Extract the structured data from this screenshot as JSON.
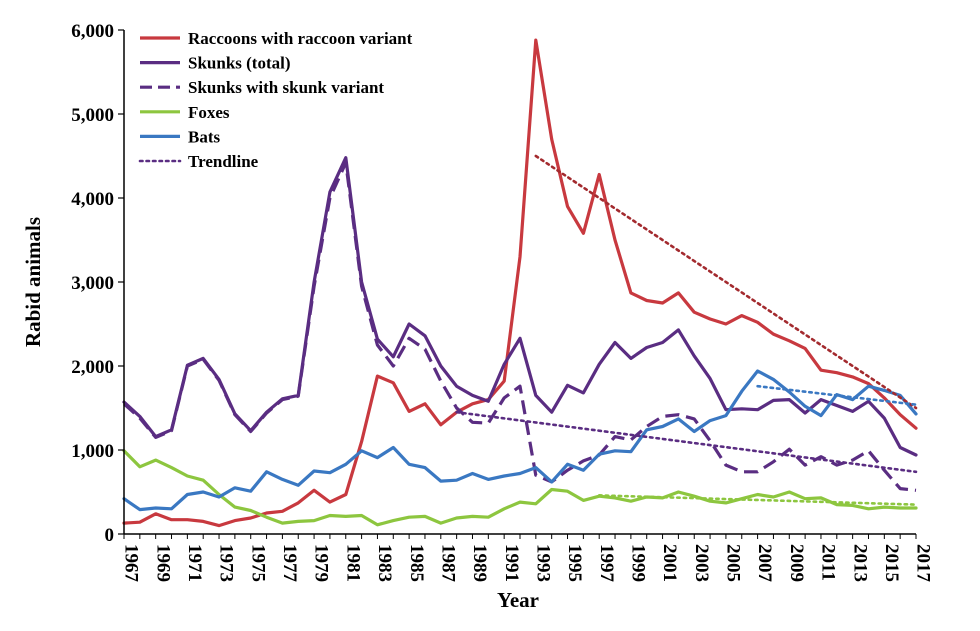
{
  "chart_data": {
    "type": "line",
    "xlabel": "Year",
    "ylabel": "Rabid animals",
    "xlim": [
      1967,
      2017
    ],
    "ylim": [
      0,
      6000
    ],
    "yticks": [
      0,
      1000,
      2000,
      3000,
      4000,
      5000,
      6000
    ],
    "ytick_labels": [
      "0",
      "1,000",
      "2,000",
      "3,000",
      "4,000",
      "5,000",
      "6,000"
    ],
    "xticks": [
      1967,
      1969,
      1971,
      1973,
      1975,
      1977,
      1979,
      1981,
      1983,
      1985,
      1987,
      1989,
      1991,
      1993,
      1995,
      1997,
      1999,
      2001,
      2003,
      2005,
      2007,
      2009,
      2011,
      2013,
      2015,
      2017
    ],
    "xtick_labels": [
      "1967",
      "1969",
      "1971",
      "1973",
      "1975",
      "1977",
      "1979",
      "1981",
      "1983",
      "1985",
      "1987",
      "1989",
      "1991",
      "1993",
      "1995",
      "1997",
      "1999",
      "2001",
      "2003",
      "2005",
      "2007",
      "2009",
      "2011",
      "2013",
      "2015",
      "2017"
    ],
    "grid": false,
    "legend_position": "top-left",
    "series": [
      {
        "name": "Raccoons with raccoon variant",
        "color": "#c8393f",
        "dash": "solid",
        "x": [
          1967,
          1968,
          1969,
          1970,
          1971,
          1972,
          1973,
          1974,
          1975,
          1976,
          1977,
          1978,
          1979,
          1980,
          1981,
          1982,
          1983,
          1984,
          1985,
          1986,
          1987,
          1988,
          1989,
          1990,
          1991,
          1992,
          1993,
          1994,
          1995,
          1996,
          1997,
          1998,
          1999,
          2000,
          2001,
          2002,
          2003,
          2004,
          2005,
          2006,
          2007,
          2008,
          2009,
          2010,
          2011,
          2012,
          2013,
          2014,
          2015,
          2016,
          2017
        ],
        "y": [
          130,
          140,
          240,
          170,
          170,
          150,
          100,
          160,
          190,
          250,
          270,
          370,
          520,
          380,
          470,
          1100,
          1880,
          1800,
          1460,
          1550,
          1300,
          1450,
          1550,
          1600,
          1820,
          3300,
          5880,
          4700,
          3900,
          3580,
          4280,
          3500,
          2870,
          2780,
          2750,
          2870,
          2640,
          2560,
          2500,
          2600,
          2520,
          2380,
          2300,
          2210,
          1950,
          1920,
          1870,
          1790,
          1620,
          1420,
          1260
        ]
      },
      {
        "name": "Skunks (total)",
        "color": "#5a2d82",
        "dash": "solid",
        "x": [
          1967,
          1968,
          1969,
          1970,
          1971,
          1972,
          1973,
          1974,
          1975,
          1976,
          1977,
          1978,
          1979,
          1980,
          1981,
          1982,
          1983,
          1984,
          1985,
          1986,
          1987,
          1988,
          1989,
          1990,
          1991,
          1992,
          1993,
          1994,
          1995,
          1996,
          1997,
          1998,
          1999,
          2000,
          2001,
          2002,
          2003,
          2004,
          2005,
          2006,
          2007,
          2008,
          2009,
          2010,
          2011,
          2012,
          2013,
          2014,
          2015,
          2016,
          2017
        ],
        "y": [
          1570,
          1400,
          1160,
          1240,
          2010,
          2090,
          1840,
          1430,
          1230,
          1450,
          1610,
          1650,
          3000,
          4070,
          4480,
          3000,
          2320,
          2110,
          2500,
          2360,
          2000,
          1760,
          1650,
          1580,
          2020,
          2330,
          1650,
          1450,
          1770,
          1680,
          2020,
          2280,
          2090,
          2220,
          2280,
          2430,
          2120,
          1850,
          1480,
          1490,
          1480,
          1590,
          1600,
          1440,
          1600,
          1530,
          1460,
          1580,
          1380,
          1030,
          940
        ]
      },
      {
        "name": "Skunks with skunk variant",
        "color": "#5a2d82",
        "dash": "dashed",
        "x": [
          1967,
          1968,
          1969,
          1970,
          1971,
          1972,
          1973,
          1974,
          1975,
          1976,
          1977,
          1978,
          1979,
          1980,
          1981,
          1982,
          1983,
          1984,
          1985,
          1986,
          1987,
          1988,
          1989,
          1990,
          1991,
          1992,
          1993,
          1994,
          1995,
          1996,
          1997,
          1998,
          1999,
          2000,
          2001,
          2002,
          2003,
          2004,
          2005,
          2006,
          2007,
          2008,
          2009,
          2010,
          2011,
          2012,
          2013,
          2014,
          2015,
          2016,
          2017
        ],
        "y": [
          1550,
          1380,
          1150,
          1230,
          2000,
          2080,
          1830,
          1420,
          1220,
          1440,
          1600,
          1640,
          2950,
          4000,
          4420,
          2950,
          2250,
          2000,
          2330,
          2200,
          1820,
          1500,
          1330,
          1320,
          1620,
          1760,
          700,
          620,
          760,
          870,
          940,
          1160,
          1120,
          1280,
          1400,
          1420,
          1370,
          1110,
          820,
          740,
          740,
          860,
          1010,
          820,
          920,
          820,
          880,
          990,
          760,
          540,
          520
        ]
      },
      {
        "name": "Foxes",
        "color": "#8dc63f",
        "dash": "solid",
        "x": [
          1967,
          1968,
          1969,
          1970,
          1971,
          1972,
          1973,
          1974,
          1975,
          1976,
          1977,
          1978,
          1979,
          1980,
          1981,
          1982,
          1983,
          1984,
          1985,
          1986,
          1987,
          1988,
          1989,
          1990,
          1991,
          1992,
          1993,
          1994,
          1995,
          1996,
          1997,
          1998,
          1999,
          2000,
          2001,
          2002,
          2003,
          2004,
          2005,
          2006,
          2007,
          2008,
          2009,
          2010,
          2011,
          2012,
          2013,
          2014,
          2015,
          2016,
          2017
        ],
        "y": [
          990,
          800,
          880,
          790,
          690,
          640,
          470,
          320,
          280,
          200,
          130,
          150,
          160,
          220,
          210,
          220,
          110,
          160,
          200,
          210,
          130,
          190,
          210,
          200,
          300,
          380,
          360,
          530,
          510,
          400,
          450,
          430,
          390,
          440,
          430,
          500,
          450,
          390,
          370,
          420,
          470,
          440,
          500,
          420,
          430,
          350,
          340,
          300,
          320,
          310,
          310
        ]
      },
      {
        "name": "Bats",
        "color": "#3a78c2",
        "dash": "solid",
        "x": [
          1967,
          1968,
          1969,
          1970,
          1971,
          1972,
          1973,
          1974,
          1975,
          1976,
          1977,
          1978,
          1979,
          1980,
          1981,
          1982,
          1983,
          1984,
          1985,
          1986,
          1987,
          1988,
          1989,
          1990,
          1991,
          1992,
          1993,
          1994,
          1995,
          1996,
          1997,
          1998,
          1999,
          2000,
          2001,
          2002,
          2003,
          2004,
          2005,
          2006,
          2007,
          2008,
          2009,
          2010,
          2011,
          2012,
          2013,
          2014,
          2015,
          2016,
          2017
        ],
        "y": [
          420,
          290,
          310,
          300,
          470,
          500,
          440,
          550,
          510,
          740,
          650,
          580,
          750,
          730,
          830,
          990,
          910,
          1030,
          830,
          790,
          630,
          640,
          720,
          650,
          690,
          720,
          790,
          620,
          830,
          760,
          950,
          990,
          980,
          1240,
          1280,
          1370,
          1220,
          1350,
          1410,
          1700,
          1940,
          1840,
          1690,
          1520,
          1410,
          1660,
          1600,
          1760,
          1710,
          1650,
          1430
        ]
      }
    ],
    "trendlines": {
      "name": "Trendline",
      "style": "dotted",
      "segments": [
        {
          "color": "#a32a2e",
          "x": [
            1993,
            2017
          ],
          "y": [
            4500,
            1500
          ]
        },
        {
          "color": "#5a2d82",
          "x": [
            1988,
            2017
          ],
          "y": [
            1450,
            740
          ]
        },
        {
          "color": "#3a78c2",
          "x": [
            2007,
            2017
          ],
          "y": [
            1760,
            1540
          ]
        },
        {
          "color": "#8dc63f",
          "x": [
            1997,
            2017
          ],
          "y": [
            460,
            350
          ]
        }
      ]
    },
    "legend": [
      {
        "label": "Raccoons with raccoon variant",
        "color": "#c8393f",
        "dash": "solid"
      },
      {
        "label": "Skunks (total)",
        "color": "#5a2d82",
        "dash": "solid"
      },
      {
        "label": "Skunks with skunk variant",
        "color": "#5a2d82",
        "dash": "dashed"
      },
      {
        "label": "Foxes",
        "color": "#8dc63f",
        "dash": "solid"
      },
      {
        "label": "Bats",
        "color": "#3a78c2",
        "dash": "solid"
      },
      {
        "label": "Trendline",
        "color": "#5a2d82",
        "dash": "dotted"
      }
    ]
  }
}
